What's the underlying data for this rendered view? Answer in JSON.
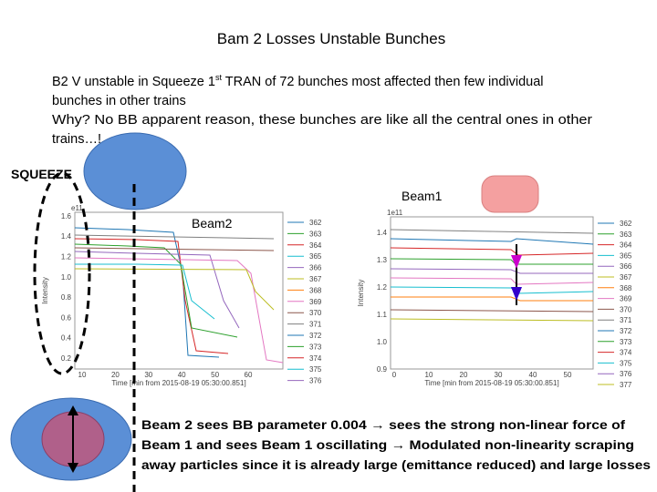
{
  "title": "Bam 2 Losses Unstable Bunches",
  "intro": {
    "line1_a": "B2 V unstable in Squeeze 1",
    "line1_sup": "st",
    "line1_b": " TRAN of 72 bunches most affected then few individual",
    "line2": "bunches in other trains",
    "line3": "Why? No BB apparent reason, these bunches are like all the central ones in other",
    "line4": "trains…!"
  },
  "labels": {
    "squeeze": "SQUEEZE",
    "beam1": "Beam1",
    "beam2": "Beam2"
  },
  "plots": [
    {
      "exponent": "e11",
      "y_label": "Intensity",
      "x_label": "Time [min from 2015-08-19 05:30:00.851]",
      "yticks": [
        "0.2",
        "0.4",
        "0.6",
        "0.8",
        "1.0",
        "1.2",
        "1.4",
        "1.6"
      ],
      "xticks": [
        "10",
        "20",
        "30",
        "40",
        "50",
        "60"
      ],
      "legend": [
        "362",
        "363",
        "364",
        "365",
        "366",
        "367",
        "368",
        "369",
        "370",
        "371",
        "372",
        "373",
        "374",
        "375",
        "376"
      ]
    },
    {
      "exponent": "1e11",
      "y_label": "Intensity",
      "x_label": "Time [min from 2015-08-19 05:30:00.851]",
      "yticks": [
        "0.9",
        "1.0",
        "1.1",
        "1.2",
        "1.3",
        "1.4"
      ],
      "xticks": [
        "0",
        "10",
        "20",
        "30",
        "40",
        "50"
      ],
      "legend": [
        "362",
        "363",
        "364",
        "365",
        "366",
        "367",
        "368",
        "369",
        "370",
        "371",
        "372",
        "373",
        "374",
        "375",
        "376",
        "377"
      ]
    }
  ],
  "conclusion": {
    "line1": "Beam 2 sees BB parameter 0.004 → sees the strong non-linear force of",
    "line2": "Beam 1 and sees Beam 1 oscillating → Modulated non-linearity scraping",
    "line3": "away particles since it is already large (emittance reduced) and large losses"
  }
}
